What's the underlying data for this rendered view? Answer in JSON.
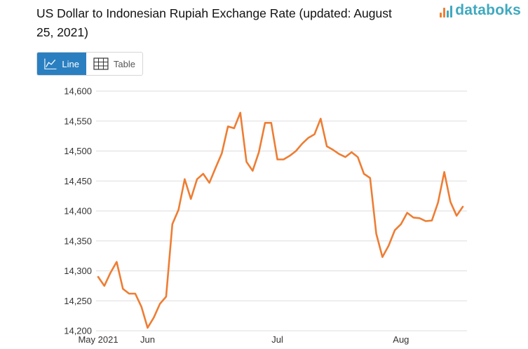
{
  "header": {
    "title": "US Dollar to Indonesian Rupiah Exchange Rate (updated: August 25, 2021)",
    "brand": "databoks"
  },
  "toggle": {
    "line_label": "Line",
    "table_label": "Table",
    "active": "line"
  },
  "colors": {
    "line": "#ee7d33",
    "grid": "#dddddd",
    "active_button": "#2a7fc1",
    "brand": "#3fa9bf"
  },
  "icons": {
    "line": "line-chart-icon",
    "table": "table-grid-icon",
    "brand": "databoks-logo-icon"
  },
  "chart_data": {
    "type": "line",
    "title": "",
    "xlabel": "",
    "ylabel": "",
    "ylim": [
      14200,
      14600
    ],
    "yticks": [
      14200,
      14250,
      14300,
      14350,
      14400,
      14450,
      14500,
      14550,
      14600
    ],
    "ytick_labels": [
      "14,200",
      "14,250",
      "14,300",
      "14,350",
      "14,400",
      "14,450",
      "14,500",
      "14,550",
      "14,600"
    ],
    "xtick_labels": [
      {
        "label": "May 2021",
        "index": 0
      },
      {
        "label": "Jun",
        "index": 8
      },
      {
        "label": "Jul",
        "index": 29
      },
      {
        "label": "Aug",
        "index": 49
      }
    ],
    "grid": true,
    "series": [
      {
        "values": [
          14290,
          14275,
          14297,
          14315,
          14270,
          14262,
          14262,
          14240,
          14205,
          14222,
          14245,
          14257,
          14378,
          14402,
          14453,
          14420,
          14453,
          14462,
          14447,
          14472,
          14496,
          14541,
          14538,
          14564,
          14482,
          14467,
          14498,
          14547,
          14547,
          14486,
          14486,
          14492,
          14500,
          14512,
          14522,
          14528,
          14554,
          14508,
          14502,
          14495,
          14490,
          14498,
          14490,
          14462,
          14455,
          14362,
          14323,
          14342,
          14368,
          14378,
          14397,
          14389,
          14388,
          14383,
          14384,
          14414,
          14465,
          14415,
          14392,
          14407
        ]
      }
    ]
  }
}
